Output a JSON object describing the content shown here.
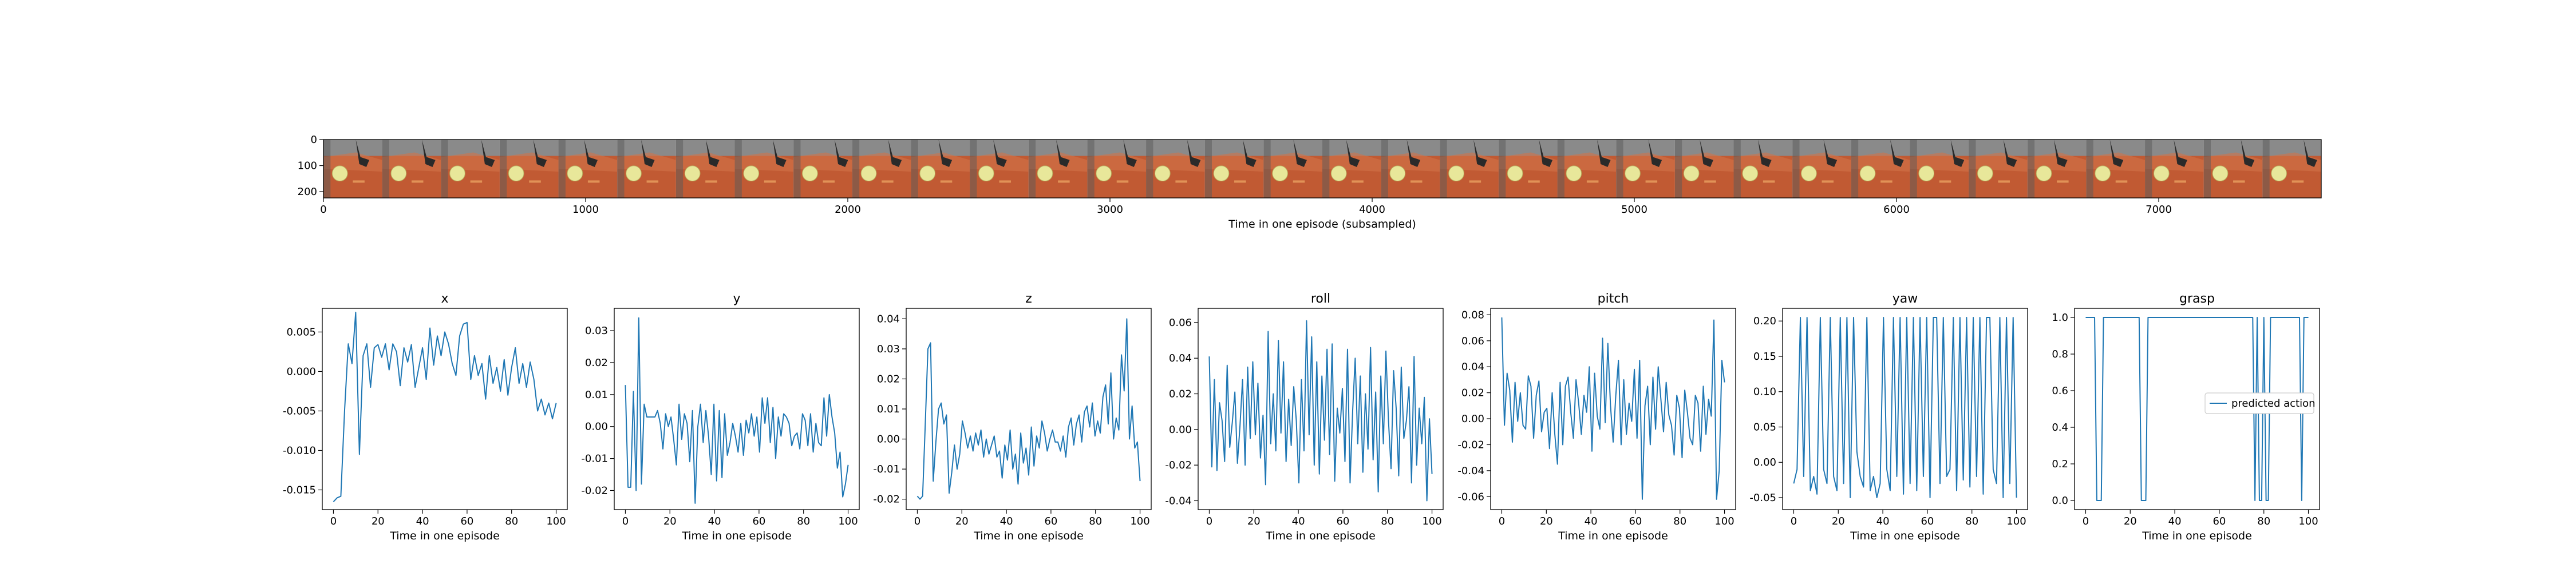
{
  "chart_data": [
    {
      "type": "image-strip",
      "xlabel": "Time in one episode (subsampled)",
      "xticks": [
        "0",
        "1000",
        "2000",
        "3000",
        "4000",
        "5000",
        "6000",
        "7000"
      ],
      "yticks": [
        "0",
        "100",
        "200"
      ],
      "xlim": [
        0,
        7620
      ],
      "ylim": [
        0,
        224
      ],
      "frame_count": 34,
      "colors": {
        "table": "#c15a33",
        "wall": "#8a8a8a",
        "ball": "#e8e79a",
        "gripper": "#2a2a2a"
      }
    },
    {
      "type": "line",
      "title": "x",
      "xlabel": "Time in one episode",
      "xticks": [
        "0",
        "20",
        "40",
        "60",
        "80",
        "100"
      ],
      "yticks": [
        "0.005",
        "0.000",
        "-0.005",
        "-0.010",
        "-0.015"
      ],
      "xlim": [
        -5,
        105
      ],
      "ylim": [
        -0.0175,
        0.008
      ],
      "color": "#1f77b4",
      "values": [
        -0.0165,
        -0.016,
        -0.0158,
        -0.005,
        0.0035,
        0.001,
        0.0075,
        -0.0105,
        0.002,
        0.0035,
        -0.002,
        0.003,
        0.0034,
        0.0018,
        0.0035,
        0.0002,
        0.0035,
        0.0025,
        -0.0018,
        0.003,
        0.0012,
        0.0034,
        -0.002,
        0.0005,
        0.003,
        -0.001,
        0.0055,
        0.0008,
        0.0045,
        0.002,
        0.005,
        0.0035,
        0.001,
        -0.0005,
        0.0045,
        0.006,
        0.0062,
        -0.001,
        0.002,
        -0.0005,
        0.001,
        -0.0035,
        0.002,
        -0.0015,
        0.0005,
        -0.0025,
        0.0015,
        -0.003,
        0.0005,
        0.003,
        -0.0015,
        0.001,
        -0.002,
        0.0012,
        -0.001,
        -0.005,
        -0.0035,
        -0.0055,
        -0.004,
        -0.006,
        -0.004
      ]
    },
    {
      "type": "line",
      "title": "y",
      "xlabel": "Time in one episode",
      "xticks": [
        "0",
        "20",
        "40",
        "60",
        "80",
        "100"
      ],
      "yticks": [
        "0.03",
        "0.02",
        "0.01",
        "0.00",
        "-0.01",
        "-0.02"
      ],
      "xlim": [
        -5,
        105
      ],
      "ylim": [
        -0.026,
        0.037
      ],
      "color": "#1f77b4",
      "values": [
        0.013,
        -0.019,
        -0.019,
        0.011,
        -0.02,
        0.034,
        -0.018,
        0.007,
        0.003,
        0.003,
        0.003,
        0.003,
        0.005,
        0.001,
        -0.007,
        0.004,
        0.0,
        0.003,
        -0.004,
        -0.012,
        0.007,
        -0.004,
        0.004,
        0.001,
        -0.011,
        0.005,
        -0.024,
        0.0,
        0.007,
        -0.005,
        0.005,
        -0.003,
        -0.015,
        0.007,
        -0.017,
        0.005,
        -0.016,
        0.004,
        -0.009,
        -0.005,
        0.001,
        -0.003,
        -0.008,
        0.001,
        -0.009,
        0.002,
        -0.002,
        0.004,
        -0.003,
        0.003,
        -0.008,
        0.009,
        0.001,
        0.009,
        -0.005,
        0.006,
        -0.01,
        0.003,
        -0.003,
        0.004,
        0.003,
        0.001,
        -0.006,
        -0.003,
        -0.002,
        -0.007,
        0.004,
        0.002,
        -0.006,
        0.004,
        -0.008,
        0.001,
        -0.005,
        -0.006,
        0.009,
        -0.003,
        0.01,
        0.003,
        -0.002,
        -0.013,
        -0.008,
        -0.022,
        -0.018,
        -0.012
      ]
    },
    {
      "type": "line",
      "title": "z",
      "xlabel": "Time in one episode",
      "xticks": [
        "0",
        "20",
        "40",
        "60",
        "80",
        "100"
      ],
      "yticks": [
        "0.04",
        "0.03",
        "0.02",
        "0.01",
        "0.00",
        "-0.01",
        "-0.02"
      ],
      "xlim": [
        -5,
        105
      ],
      "ylim": [
        -0.0235,
        0.0435
      ],
      "color": "#1f77b4",
      "values": [
        -0.019,
        -0.02,
        -0.019,
        0.005,
        0.03,
        0.032,
        -0.014,
        -0.001,
        0.01,
        0.012,
        0.005,
        0.008,
        -0.018,
        -0.011,
        -0.002,
        -0.01,
        -0.005,
        0.006,
        0.002,
        -0.003,
        0.001,
        -0.004,
        0.002,
        -0.002,
        0.003,
        -0.006,
        0.0,
        -0.005,
        -0.002,
        0.001,
        -0.006,
        -0.004,
        -0.013,
        -0.002,
        -0.007,
        0.003,
        -0.01,
        -0.005,
        -0.015,
        0.002,
        -0.008,
        -0.003,
        -0.012,
        0.004,
        -0.009,
        0.001,
        -0.003,
        0.006,
        0.002,
        -0.004,
        0.0,
        0.003,
        -0.001,
        -0.001,
        -0.004,
        0.001,
        -0.006,
        0.004,
        0.007,
        -0.002,
        0.005,
        0.008,
        -0.001,
        0.009,
        0.011,
        0.004,
        0.012,
        0.001,
        0.006,
        0.002,
        0.014,
        0.018,
        0.005,
        0.022,
        0.0,
        0.007,
        0.003,
        0.028,
        0.016,
        0.04,
        0.0,
        0.011,
        -0.003,
        -0.001,
        -0.014
      ]
    },
    {
      "type": "line",
      "title": "roll",
      "xlabel": "Time in one episode",
      "xticks": [
        "0",
        "20",
        "40",
        "60",
        "80",
        "100"
      ],
      "yticks": [
        "0.06",
        "0.04",
        "0.02",
        "0.00",
        "-0.02",
        "-0.04"
      ],
      "xlim": [
        -5,
        105
      ],
      "ylim": [
        -0.045,
        0.068
      ],
      "color": "#1f77b4",
      "values": [
        0.041,
        -0.021,
        0.028,
        -0.023,
        0.015,
        0.005,
        -0.018,
        0.036,
        -0.01,
        0.004,
        0.021,
        -0.019,
        0.002,
        0.028,
        -0.02,
        0.035,
        -0.005,
        0.038,
        -0.003,
        0.026,
        -0.016,
        0.008,
        -0.031,
        0.055,
        -0.008,
        0.02,
        -0.012,
        0.05,
        -0.002,
        0.038,
        -0.018,
        0.017,
        -0.009,
        0.024,
        0.005,
        -0.03,
        0.028,
        -0.012,
        0.061,
        -0.003,
        0.052,
        -0.02,
        0.038,
        -0.025,
        0.03,
        -0.006,
        0.045,
        -0.014,
        0.048,
        -0.029,
        0.012,
        -0.002,
        0.023,
        -0.018,
        0.045,
        -0.03,
        0.01,
        0.04,
        -0.008,
        0.03,
        -0.024,
        0.02,
        -0.011,
        0.046,
        -0.017,
        0.021,
        -0.035,
        0.03,
        -0.008,
        0.044,
        0.005,
        -0.022,
        0.033,
        0.012,
        -0.026,
        0.035,
        -0.005,
        0.005,
        0.024,
        -0.03,
        0.041,
        -0.02,
        0.012,
        -0.008,
        0.018,
        -0.04,
        0.006,
        -0.025
      ]
    },
    {
      "type": "line",
      "title": "pitch",
      "xlabel": "Time in one episode",
      "xticks": [
        "0",
        "20",
        "40",
        "60",
        "80",
        "100"
      ],
      "yticks": [
        "0.08",
        "0.06",
        "0.04",
        "0.02",
        "0.00",
        "-0.02",
        "-0.04",
        "-0.06"
      ],
      "xlim": [
        -5,
        105
      ],
      "ylim": [
        -0.07,
        0.085
      ],
      "color": "#1f77b4",
      "values": [
        0.078,
        -0.005,
        0.035,
        0.022,
        -0.018,
        0.028,
        -0.002,
        0.02,
        -0.005,
        -0.008,
        0.033,
        0.025,
        -0.015,
        0.018,
        0.029,
        -0.01,
        0.005,
        0.008,
        -0.023,
        0.02,
        -0.012,
        -0.035,
        0.028,
        -0.02,
        0.025,
        0.032,
        0.005,
        -0.015,
        0.03,
        0.012,
        -0.012,
        0.018,
        0.005,
        0.04,
        -0.025,
        0.035,
        0.002,
        -0.008,
        0.062,
        -0.003,
        0.058,
        0.01,
        -0.018,
        0.018,
        0.045,
        -0.02,
        0.03,
        -0.012,
        0.012,
        -0.002,
        0.038,
        -0.015,
        0.045,
        -0.062,
        0.01,
        0.025,
        -0.02,
        0.032,
        -0.008,
        0.04,
        0.015,
        -0.01,
        0.028,
        0.003,
        -0.005,
        -0.028,
        0.018,
        0.008,
        -0.03,
        0.022,
        0.005,
        -0.015,
        -0.02,
        0.018,
        0.012,
        -0.025,
        0.025,
        -0.012,
        0.015,
        0.002,
        0.076,
        -0.062,
        -0.04,
        0.045,
        0.028
      ]
    },
    {
      "type": "line",
      "title": "yaw",
      "xlabel": "Time in one episode",
      "xticks": [
        "0",
        "20",
        "40",
        "60",
        "80",
        "100"
      ],
      "yticks": [
        "0.20",
        "0.15",
        "0.10",
        "0.05",
        "0.00",
        "-0.05"
      ],
      "xlim": [
        -5,
        105
      ],
      "ylim": [
        -0.067,
        0.218
      ],
      "color": "#1f77b4",
      "values": [
        -0.03,
        -0.01,
        0.205,
        -0.02,
        0.205,
        -0.04,
        -0.02,
        -0.045,
        0.205,
        -0.01,
        -0.03,
        0.205,
        -0.02,
        -0.04,
        0.205,
        -0.03,
        0.205,
        -0.05,
        0.205,
        0.015,
        -0.02,
        -0.035,
        0.205,
        -0.04,
        -0.02,
        -0.05,
        -0.03,
        0.205,
        -0.01,
        -0.04,
        0.205,
        -0.02,
        0.205,
        -0.045,
        0.205,
        -0.03,
        0.205,
        -0.04,
        0.205,
        -0.02,
        0.205,
        -0.05,
        0.205,
        0.205,
        -0.03,
        0.205,
        -0.02,
        -0.01,
        0.205,
        -0.04,
        0.205,
        -0.025,
        0.205,
        -0.035,
        0.205,
        -0.02,
        0.205,
        -0.045,
        0.205,
        0.205,
        -0.01,
        -0.03,
        0.205,
        -0.05,
        0.205,
        -0.03,
        0.205,
        -0.05
      ]
    },
    {
      "type": "line",
      "title": "grasp",
      "xlabel": "Time in one episode",
      "xticks": [
        "0",
        "20",
        "40",
        "60",
        "80",
        "100"
      ],
      "yticks": [
        "1.0",
        "0.8",
        "0.6",
        "0.4",
        "0.2",
        "0.0"
      ],
      "xlim": [
        -5,
        105
      ],
      "ylim": [
        -0.05,
        1.05
      ],
      "color": "#1f77b4",
      "legend": "predicted action",
      "legend_loc": "center right",
      "x": [
        0,
        4,
        5,
        6,
        7,
        8,
        24,
        25,
        26,
        27,
        28,
        75,
        76,
        77,
        78,
        79,
        80,
        81,
        82,
        83,
        84,
        85,
        86,
        87,
        88,
        89,
        90,
        91,
        92,
        93,
        94,
        95,
        96,
        97,
        98,
        99,
        100
      ],
      "values": [
        1,
        1,
        0,
        0,
        0,
        1,
        1,
        0,
        0,
        0,
        1,
        1,
        0,
        1,
        0,
        0,
        1,
        0,
        0,
        1,
        1,
        1,
        1,
        1,
        1,
        1,
        1,
        1,
        1,
        1,
        1,
        1,
        1,
        0,
        1,
        1,
        1
      ]
    }
  ]
}
